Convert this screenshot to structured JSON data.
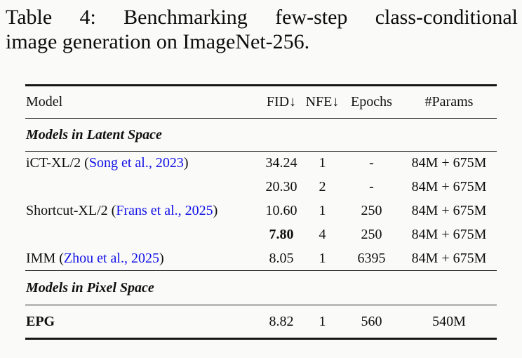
{
  "caption": {
    "line1": "Table 4: Benchmarking few-step class-conditional",
    "line2": "image generation on ImageNet-256."
  },
  "table": {
    "headers": {
      "model": "Model",
      "fid": "FID↓",
      "nfe": "NFE↓",
      "epochs": "Epochs",
      "params": "#Params"
    },
    "sections": [
      {
        "label": "Models in Latent Space",
        "rows": [
          {
            "model": "iCT-XL/2 (",
            "citation": "Song et al., 2023",
            "close": ")",
            "fid": "34.24",
            "nfe": "1",
            "epochs": "-",
            "params": "84M + 675M"
          },
          {
            "model": "",
            "citation": "",
            "close": "",
            "fid": "20.30",
            "nfe": "2",
            "epochs": "-",
            "params": "84M + 675M"
          },
          {
            "model": "Shortcut-XL/2 (",
            "citation": "Frans et al., 2025",
            "close": ")",
            "fid": "10.60",
            "nfe": "1",
            "epochs": "250",
            "params": "84M + 675M"
          },
          {
            "model": "",
            "citation": "",
            "close": "",
            "fid": "7.80",
            "nfe": "4",
            "epochs": "250",
            "params": "84M + 675M"
          },
          {
            "model": "IMM (",
            "citation": "Zhou et al., 2025",
            "close": ")",
            "fid": "8.05",
            "nfe": "1",
            "epochs": "6395",
            "params": "84M + 675M"
          }
        ]
      },
      {
        "label": "Models in Pixel Space",
        "rows": [
          {
            "model": "EPG",
            "citation": "",
            "close": "",
            "fid": "8.82",
            "nfe": "1",
            "epochs": "560",
            "params": "540M"
          }
        ]
      }
    ]
  },
  "colors": {
    "citation_blue": "#1111e8",
    "text": "#101010",
    "rule": "#161616",
    "background": "#fafaf8"
  }
}
